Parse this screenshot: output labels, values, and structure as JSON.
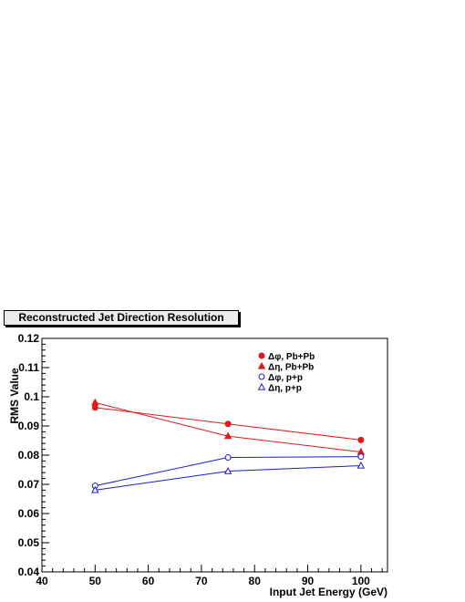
{
  "chart_data": {
    "type": "line",
    "title": "Reconstructed Jet Direction Resolution",
    "xlabel": "Input Jet Energy (GeV)",
    "ylabel": "RMS Value",
    "xlim": [
      40,
      105
    ],
    "ylim": [
      0.04,
      0.12
    ],
    "x_ticks": [
      40,
      50,
      60,
      70,
      80,
      90,
      100
    ],
    "x_tick_labels": [
      "40",
      "50",
      "60",
      "70",
      "80",
      "90",
      "100"
    ],
    "y_ticks": [
      0.04,
      0.05,
      0.06,
      0.07,
      0.08,
      0.09,
      0.1,
      0.11,
      0.12
    ],
    "y_tick_labels": [
      "0.04",
      "0.05",
      "0.06",
      "0.07",
      "0.08",
      "0.09",
      "0.1",
      "0.11",
      "0.12"
    ],
    "legend_position": "top-right",
    "grid": false,
    "series": [
      {
        "name": "Δφ, Pb+Pb",
        "color": "#e0191c",
        "marker": "filled-circle",
        "x": [
          50,
          75,
          100
        ],
        "y": [
          0.0963,
          0.0907,
          0.0852
        ]
      },
      {
        "name": "Δη, Pb+Pb",
        "color": "#e0191c",
        "marker": "filled-triangle",
        "x": [
          50,
          75,
          100
        ],
        "y": [
          0.098,
          0.0865,
          0.0811
        ]
      },
      {
        "name": "Δφ, p+p",
        "color": "#1b1bd6",
        "marker": "open-circle",
        "x": [
          50,
          75,
          100
        ],
        "y": [
          0.0695,
          0.0792,
          0.0795
        ]
      },
      {
        "name": "Δη, p+p",
        "color": "#1b1bd6",
        "marker": "open-triangle",
        "x": [
          50,
          75,
          100
        ],
        "y": [
          0.068,
          0.0745,
          0.0764
        ]
      }
    ]
  }
}
